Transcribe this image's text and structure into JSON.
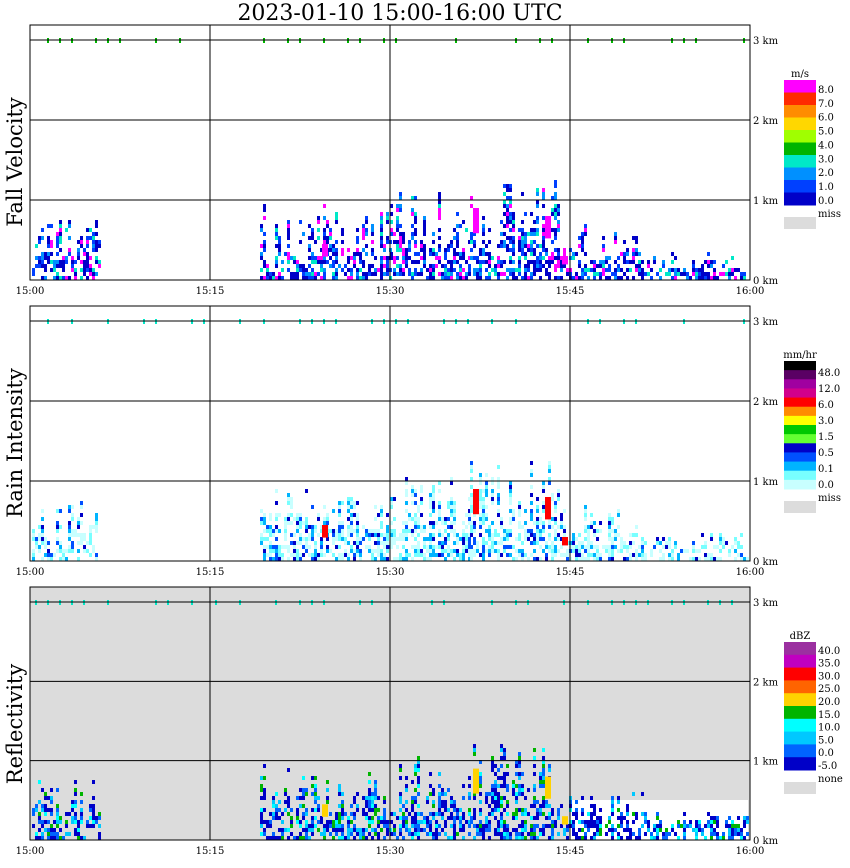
{
  "title": "2023-01-10  15:00-16:00 UTC",
  "chart_data": [
    {
      "type": "heatmap",
      "title": "Fall Velocity",
      "x_ticks": [
        "15:00",
        "15:15",
        "15:30",
        "15:45",
        "16:00"
      ],
      "y_ticks": [
        "0 km",
        "1 km",
        "2 km",
        "3 km"
      ],
      "xlim": [
        "15:00",
        "16:00"
      ],
      "ylim_km": [
        0,
        3
      ],
      "grid": true,
      "colorbar": {
        "unit": "m/s",
        "labels": [
          "8.0",
          "7.0",
          "6.0",
          "5.0",
          "4.0",
          "3.0",
          "2.0",
          "1.0",
          "0.0"
        ],
        "colors": [
          "#ff00ff",
          "#ff2a00",
          "#ff8c00",
          "#ffd700",
          "#a0ff00",
          "#00b400",
          "#00e8c8",
          "#0090ff",
          "#0040ff",
          "#0000c8"
        ],
        "missing_label": "miss",
        "missing_color": "#dcdcdc"
      },
      "background": "#ffffff"
    },
    {
      "type": "heatmap",
      "title": "Rain Intensity",
      "x_ticks": [
        "15:00",
        "15:15",
        "15:30",
        "15:45",
        "16:00"
      ],
      "y_ticks": [
        "0 km",
        "1 km",
        "2 km",
        "3 km"
      ],
      "xlim": [
        "15:00",
        "16:00"
      ],
      "ylim_km": [
        0,
        3
      ],
      "grid": true,
      "colorbar": {
        "unit": "mm/hr",
        "labels": [
          "48.0",
          "12.0",
          "6.0",
          "3.0",
          "1.5",
          "0.5",
          "0.1",
          "0.0"
        ],
        "colors": [
          "#000000",
          "#5a0064",
          "#a000a0",
          "#d2008c",
          "#ff0000",
          "#ff8c00",
          "#ffff00",
          "#00c800",
          "#64ff32",
          "#0000c8",
          "#0050ff",
          "#00b4ff",
          "#78ffff",
          "#c8ffff"
        ],
        "missing_label": "miss",
        "missing_color": "#dcdcdc"
      },
      "background": "#ffffff"
    },
    {
      "type": "heatmap",
      "title": "Reflectivity",
      "x_ticks": [
        "15:00",
        "15:15",
        "15:30",
        "15:45",
        "16:00"
      ],
      "y_ticks": [
        "0 km",
        "1 km",
        "2 km",
        "3 km"
      ],
      "xlim": [
        "15:00",
        "16:00"
      ],
      "ylim_km": [
        0,
        3
      ],
      "grid": true,
      "colorbar": {
        "unit": "dBZ",
        "labels": [
          "40.0",
          "35.0",
          "30.0",
          "25.0",
          "20.0",
          "15.0",
          "10.0",
          "5.0",
          "0.0",
          "-5.0"
        ],
        "colors": [
          "#9b30a0",
          "#c000c0",
          "#ff0000",
          "#ff6400",
          "#ffd200",
          "#00b400",
          "#00ffff",
          "#00c8ff",
          "#0064ff",
          "#0000c8"
        ],
        "missing_label": "none",
        "missing_color": "#dcdcdc"
      },
      "background": "#dcdcdc"
    }
  ]
}
